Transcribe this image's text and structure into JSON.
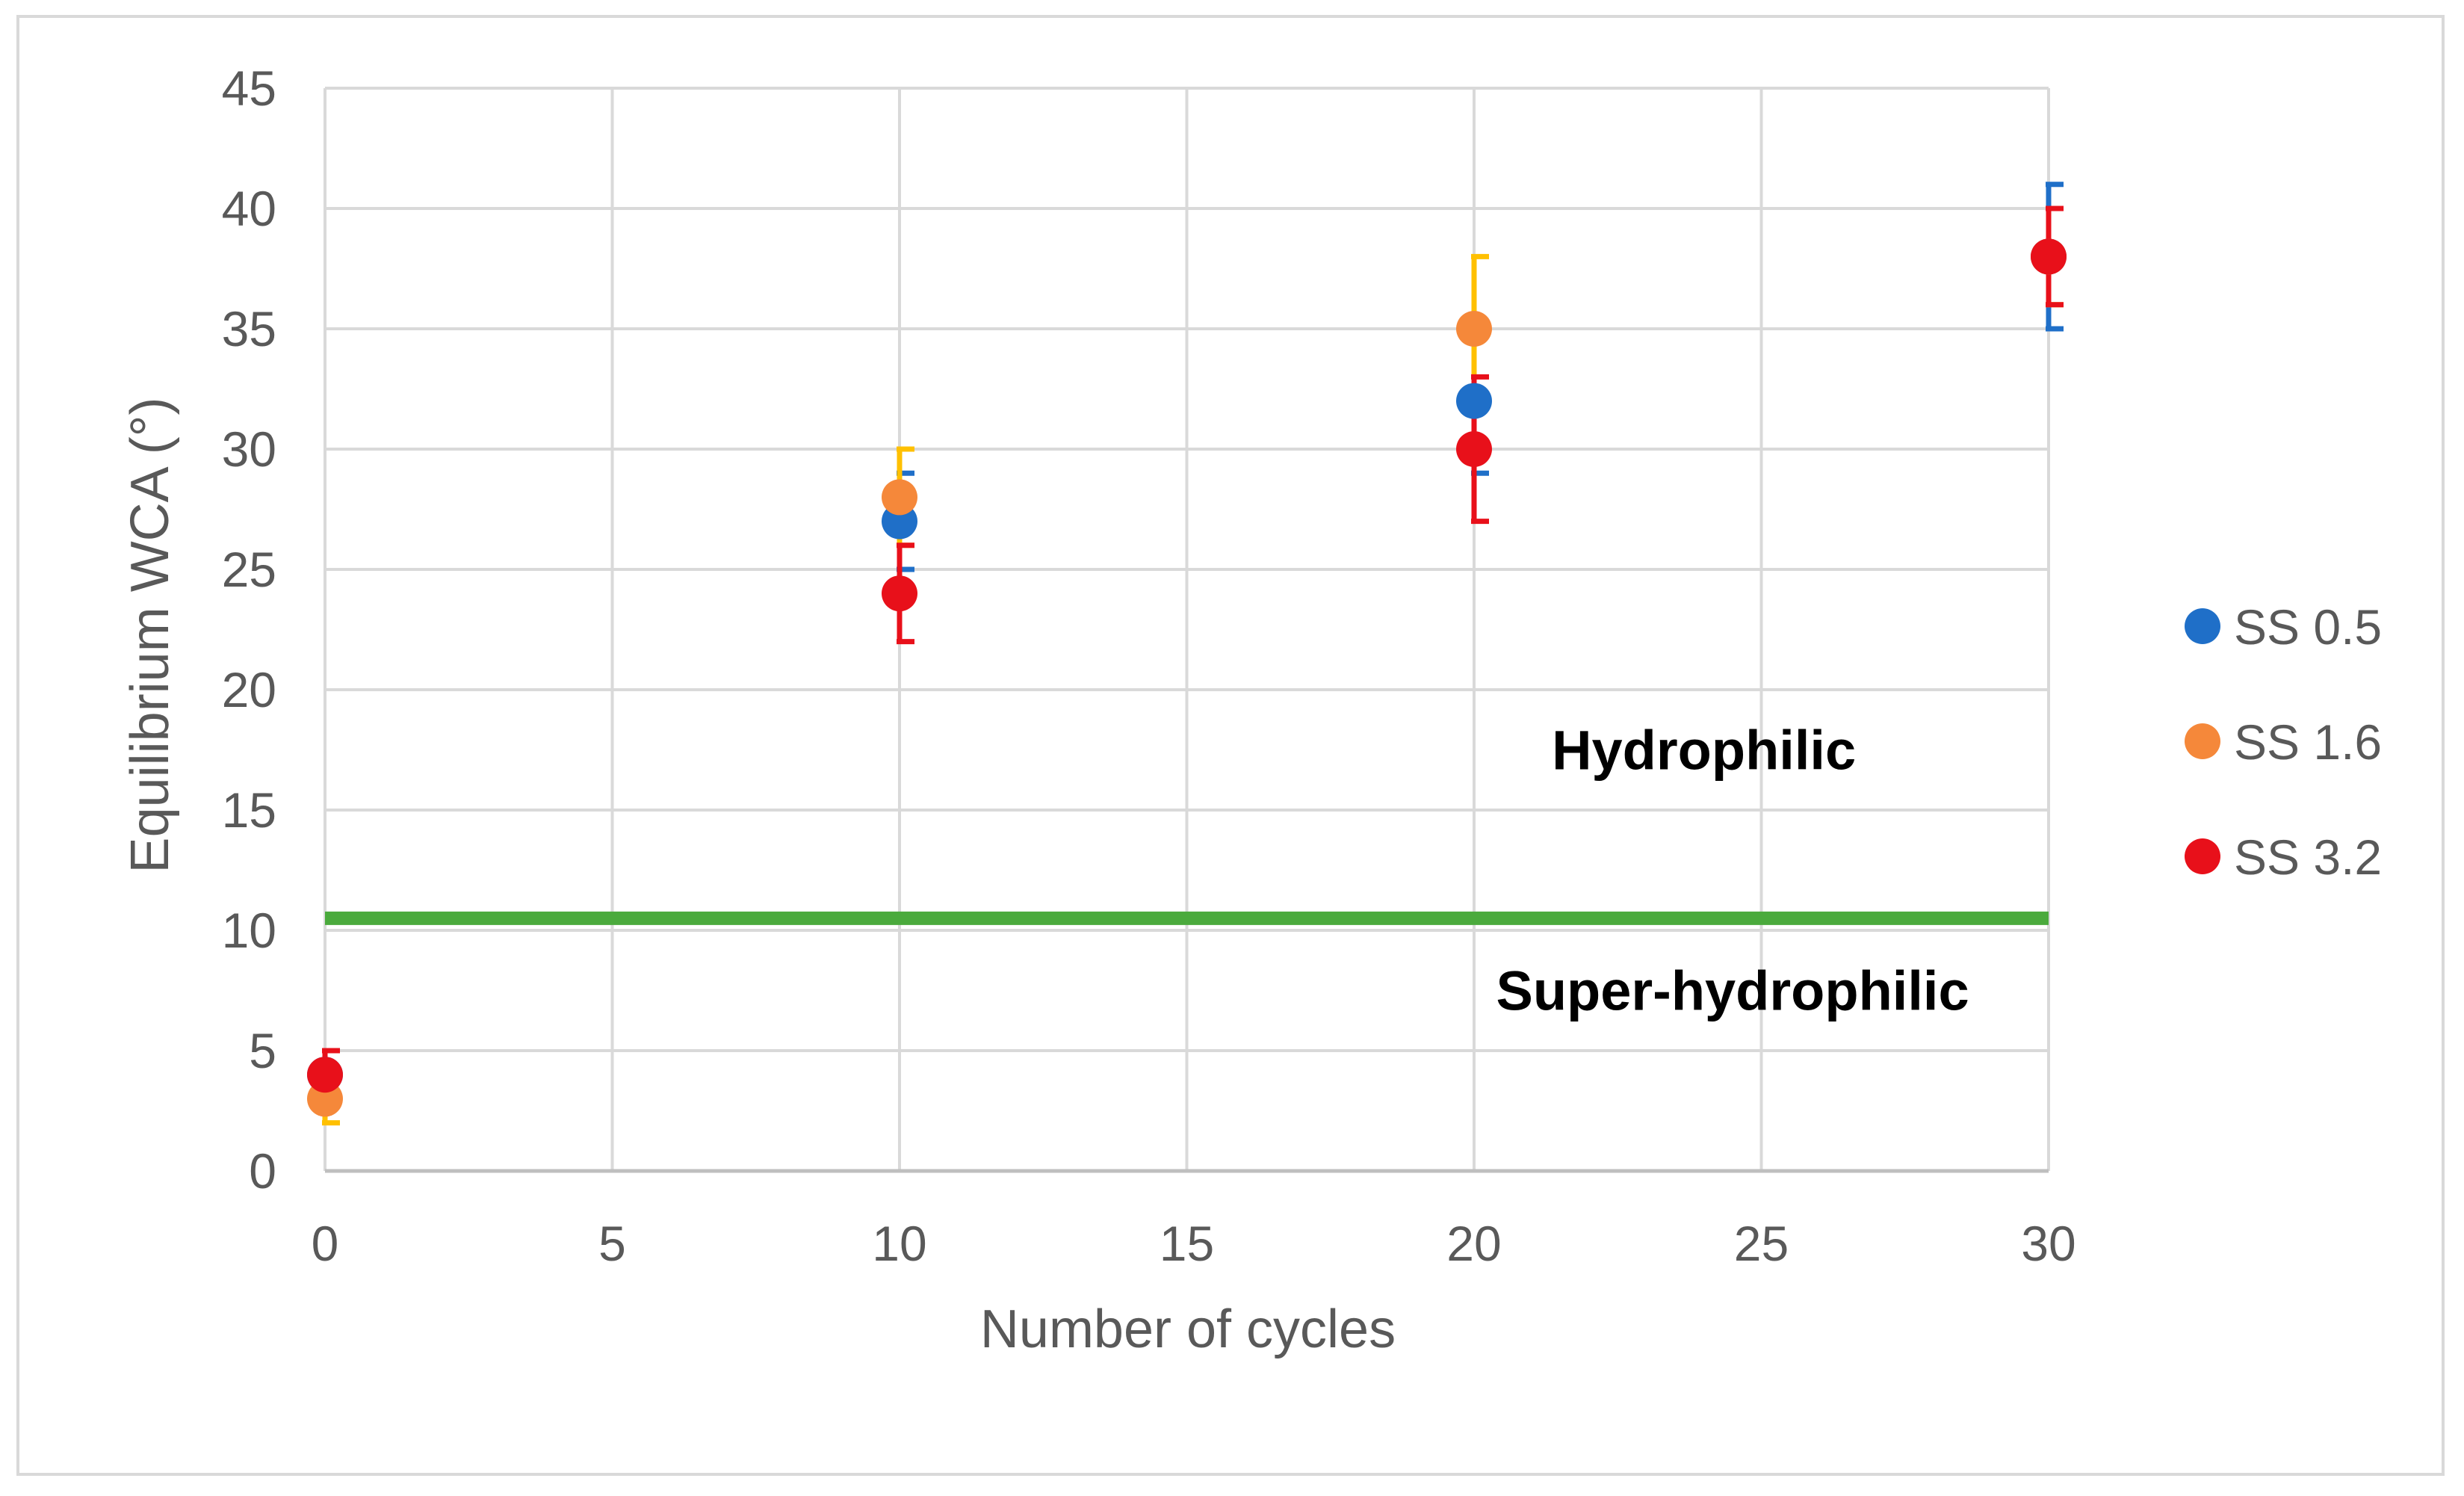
{
  "chart_data": {
    "type": "scatter",
    "title": "",
    "xlabel": "Number of cycles",
    "ylabel": "Equilibrium WCA (°)",
    "xlim": [
      0,
      30
    ],
    "ylim": [
      0,
      45
    ],
    "x_ticks": [
      0,
      5,
      10,
      15,
      20,
      25,
      30
    ],
    "y_ticks": [
      0,
      5,
      10,
      15,
      20,
      25,
      30,
      35,
      40,
      45
    ],
    "x_tick_labels": [
      "0",
      "5",
      "10",
      "15",
      "20",
      "25",
      "30"
    ],
    "y_tick_labels": [
      "0",
      "5",
      "10",
      "15",
      "20",
      "25",
      "30",
      "35",
      "40",
      "45"
    ],
    "grid": true,
    "legend_position": "right",
    "series": [
      {
        "name": "SS 0.5",
        "color": "#1f6fc8",
        "errbar_color": "#1f6fc8",
        "x": [
          0,
          10,
          20,
          30
        ],
        "y": [
          4,
          27,
          32,
          38
        ],
        "err": [
          1,
          2,
          3,
          3
        ]
      },
      {
        "name": "SS 1.6",
        "color": "#f5883a",
        "errbar_color": "#ffc000",
        "x": [
          0,
          10,
          20,
          30
        ],
        "y": [
          3,
          28,
          35,
          38
        ],
        "err": [
          1,
          2,
          3,
          2
        ]
      },
      {
        "name": "SS 3.2",
        "color": "#e8101a",
        "errbar_color": "#e8101a",
        "x": [
          0,
          10,
          20,
          30
        ],
        "y": [
          4,
          24,
          30,
          38
        ],
        "err": [
          1,
          2,
          3,
          2
        ]
      }
    ],
    "threshold": {
      "y": 10.5,
      "color": "#4aaa3c"
    },
    "annotations": [
      {
        "text": "Hydrophilic",
        "x": 24,
        "y": 17.5
      },
      {
        "text": "Super-hydrophilic",
        "x": 24.5,
        "y": 7.5
      }
    ]
  }
}
